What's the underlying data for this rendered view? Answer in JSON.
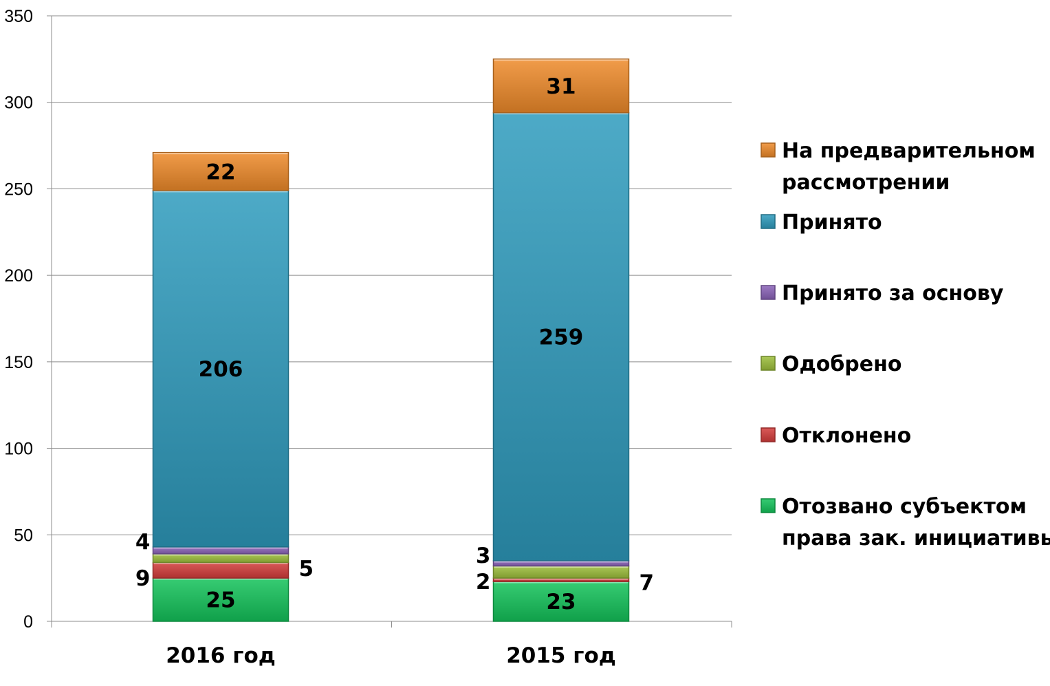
{
  "chart_data": {
    "type": "bar",
    "stacked": true,
    "categories": [
      "2016 год",
      "2015 год"
    ],
    "ylim": [
      0,
      350
    ],
    "yticks": [
      0,
      50,
      100,
      150,
      200,
      250,
      300,
      350
    ],
    "grid": true,
    "legend_position": "right",
    "series": [
      {
        "name": "Отозвано субъектом права зак. инициативы",
        "values": [
          25,
          23
        ],
        "color": "#14c35a"
      },
      {
        "name": "Отклонено",
        "values": [
          9,
          2
        ],
        "color": "#d43c3a"
      },
      {
        "name": "Одобрено",
        "values": [
          5,
          7
        ],
        "color": "#9cbe3a"
      },
      {
        "name": "Принято за основу",
        "values": [
          4,
          3
        ],
        "color": "#8a62b8"
      },
      {
        "name": "Принято",
        "values": [
          206,
          259
        ],
        "color": "#2e9bbd"
      },
      {
        "name": "На предварительном рассмотрении",
        "values": [
          22,
          31
        ],
        "color": "#ee8a2a"
      }
    ]
  }
}
